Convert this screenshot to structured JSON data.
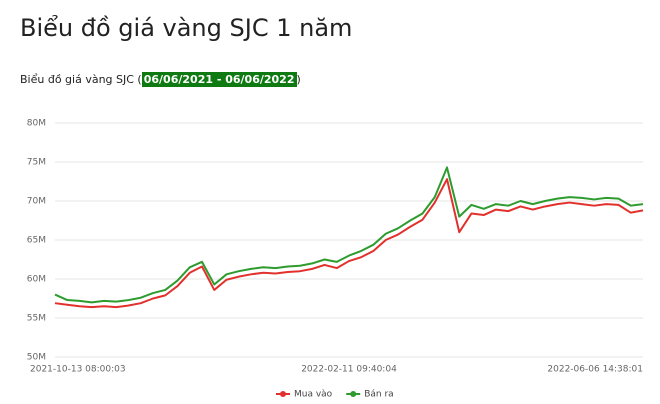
{
  "chart_data": {
    "type": "line",
    "title": "Biểu đồ giá vàng SJC 1 năm",
    "subtitle_prefix": "Biểu đồ giá vàng SJC (",
    "date_range": "06/06/2021 - 06/06/2022",
    "subtitle_suffix": ")",
    "categories": [
      "2021-10-13 08:00:03",
      null,
      null,
      null,
      null,
      null,
      null,
      null,
      null,
      null,
      null,
      null,
      null,
      null,
      null,
      null,
      null,
      null,
      null,
      null,
      null,
      null,
      null,
      null,
      "2022-02-11 09:40:04",
      null,
      null,
      null,
      null,
      null,
      null,
      null,
      null,
      null,
      null,
      null,
      null,
      null,
      null,
      null,
      null,
      null,
      null,
      null,
      null,
      null,
      null,
      null,
      "2022-06-06 14:38:01"
    ],
    "series": [
      {
        "name": "Mua vào",
        "color": "#e2312d",
        "values": [
          56.9,
          56.7,
          56.5,
          56.4,
          56.5,
          56.4,
          56.6,
          56.9,
          57.5,
          57.9,
          59.1,
          60.8,
          61.6,
          58.6,
          59.9,
          60.3,
          60.6,
          60.8,
          60.7,
          60.9,
          61.0,
          61.3,
          61.8,
          61.4,
          62.3,
          62.8,
          63.6,
          65.0,
          65.7,
          66.7,
          67.6,
          69.8,
          72.8,
          66.0,
          68.4,
          68.2,
          68.9,
          68.7,
          69.3,
          68.9,
          69.3,
          69.6,
          69.8,
          69.6,
          69.4,
          69.6,
          69.5,
          68.5,
          68.8
        ]
      },
      {
        "name": "Bán ra",
        "color": "#2e9b2e",
        "values": [
          58.0,
          57.3,
          57.2,
          57.0,
          57.2,
          57.1,
          57.3,
          57.6,
          58.2,
          58.6,
          59.8,
          61.5,
          62.2,
          59.3,
          60.6,
          61.0,
          61.3,
          61.5,
          61.4,
          61.6,
          61.7,
          62.0,
          62.5,
          62.2,
          63.0,
          63.6,
          64.4,
          65.8,
          66.5,
          67.5,
          68.4,
          70.5,
          74.3,
          68.0,
          69.5,
          69.0,
          69.6,
          69.4,
          70.0,
          69.6,
          70.0,
          70.3,
          70.5,
          70.4,
          70.2,
          70.4,
          70.3,
          69.4,
          69.6
        ]
      }
    ],
    "ylim": [
      50,
      80
    ],
    "yticks": [
      {
        "value": 50,
        "label": "50M"
      },
      {
        "value": 55,
        "label": "55M"
      },
      {
        "value": 60,
        "label": "60M"
      },
      {
        "value": 65,
        "label": "65M"
      },
      {
        "value": 70,
        "label": "70M"
      },
      {
        "value": 75,
        "label": "75M"
      },
      {
        "value": 80,
        "label": "80M"
      }
    ],
    "grid": true,
    "legend": "bottom"
  }
}
